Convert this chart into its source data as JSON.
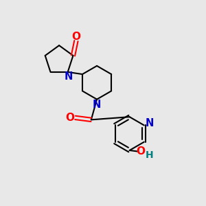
{
  "bg_color": "#e8e8e8",
  "bond_color": "#000000",
  "N_color": "#0000cc",
  "O_color": "#ff0000",
  "OH_color": "#008080",
  "font_size_atom": 9.5,
  "line_width": 1.5,
  "figsize": [
    3.0,
    3.0
  ],
  "dpi": 100,
  "xlim": [
    0,
    10
  ],
  "ylim": [
    0,
    10
  ]
}
